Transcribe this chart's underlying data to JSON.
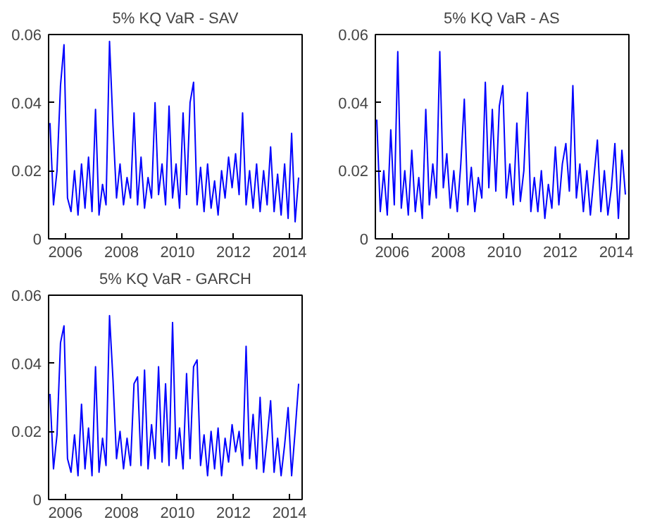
{
  "chart_data": [
    {
      "type": "line",
      "title": "5% KQ VaR - SAV",
      "xlim": [
        2005.4,
        2014.45
      ],
      "xticks": [
        2006,
        2008,
        2010,
        2012,
        2014
      ],
      "ylim": [
        0,
        0.06
      ],
      "yticks": [
        0,
        0.02,
        0.04,
        0.06
      ],
      "grid": false,
      "x": [
        2005.45,
        2005.575,
        2005.7,
        2005.825,
        2005.95,
        2006.075,
        2006.2,
        2006.325,
        2006.45,
        2006.575,
        2006.7,
        2006.825,
        2006.95,
        2007.075,
        2007.2,
        2007.325,
        2007.45,
        2007.575,
        2007.7,
        2007.825,
        2007.95,
        2008.075,
        2008.2,
        2008.325,
        2008.45,
        2008.575,
        2008.7,
        2008.825,
        2008.95,
        2009.075,
        2009.2,
        2009.325,
        2009.45,
        2009.575,
        2009.7,
        2009.825,
        2009.95,
        2010.075,
        2010.2,
        2010.325,
        2010.45,
        2010.575,
        2010.7,
        2010.825,
        2010.95,
        2011.075,
        2011.2,
        2011.325,
        2011.45,
        2011.575,
        2011.7,
        2011.825,
        2011.95,
        2012.075,
        2012.2,
        2012.325,
        2012.45,
        2012.575,
        2012.7,
        2012.825,
        2012.95,
        2013.075,
        2013.2,
        2013.325,
        2013.45,
        2013.575,
        2013.7,
        2013.825,
        2013.95,
        2014.075,
        2014.2,
        2014.325
      ],
      "series": [
        {
          "color": "#0000ff",
          "values": [
            0.034,
            0.01,
            0.02,
            0.045,
            0.057,
            0.012,
            0.008,
            0.02,
            0.007,
            0.022,
            0.009,
            0.024,
            0.008,
            0.038,
            0.007,
            0.016,
            0.01,
            0.058,
            0.033,
            0.012,
            0.022,
            0.01,
            0.018,
            0.012,
            0.037,
            0.01,
            0.024,
            0.009,
            0.018,
            0.012,
            0.04,
            0.013,
            0.022,
            0.01,
            0.039,
            0.012,
            0.022,
            0.009,
            0.037,
            0.013,
            0.04,
            0.046,
            0.01,
            0.021,
            0.008,
            0.022,
            0.009,
            0.017,
            0.007,
            0.02,
            0.012,
            0.024,
            0.015,
            0.025,
            0.013,
            0.037,
            0.01,
            0.02,
            0.009,
            0.022,
            0.008,
            0.02,
            0.01,
            0.027,
            0.008,
            0.019,
            0.007,
            0.022,
            0.006,
            0.031,
            0.005,
            0.018
          ]
        }
      ]
    },
    {
      "type": "line",
      "title": "5% KQ VaR - AS",
      "xlim": [
        2005.4,
        2014.45
      ],
      "xticks": [
        2006,
        2008,
        2010,
        2012,
        2014
      ],
      "ylim": [
        0,
        0.06
      ],
      "yticks": [
        0,
        0.02,
        0.04,
        0.06
      ],
      "grid": false,
      "x": [
        2005.45,
        2005.575,
        2005.7,
        2005.825,
        2005.95,
        2006.075,
        2006.2,
        2006.325,
        2006.45,
        2006.575,
        2006.7,
        2006.825,
        2006.95,
        2007.075,
        2007.2,
        2007.325,
        2007.45,
        2007.575,
        2007.7,
        2007.825,
        2007.95,
        2008.075,
        2008.2,
        2008.325,
        2008.45,
        2008.575,
        2008.7,
        2008.825,
        2008.95,
        2009.075,
        2009.2,
        2009.325,
        2009.45,
        2009.575,
        2009.7,
        2009.825,
        2009.95,
        2010.075,
        2010.2,
        2010.325,
        2010.45,
        2010.575,
        2010.7,
        2010.825,
        2010.95,
        2011.075,
        2011.2,
        2011.325,
        2011.45,
        2011.575,
        2011.7,
        2011.825,
        2011.95,
        2012.075,
        2012.2,
        2012.325,
        2012.45,
        2012.575,
        2012.7,
        2012.825,
        2012.95,
        2013.075,
        2013.2,
        2013.325,
        2013.45,
        2013.575,
        2013.7,
        2013.825,
        2013.95,
        2014.075,
        2014.2,
        2014.325
      ],
      "series": [
        {
          "color": "#0000ff",
          "values": [
            0.035,
            0.008,
            0.02,
            0.007,
            0.032,
            0.01,
            0.055,
            0.009,
            0.02,
            0.007,
            0.026,
            0.008,
            0.018,
            0.006,
            0.038,
            0.01,
            0.022,
            0.012,
            0.055,
            0.015,
            0.025,
            0.009,
            0.02,
            0.008,
            0.022,
            0.041,
            0.01,
            0.021,
            0.008,
            0.018,
            0.012,
            0.046,
            0.015,
            0.038,
            0.014,
            0.039,
            0.045,
            0.012,
            0.022,
            0.01,
            0.034,
            0.011,
            0.02,
            0.043,
            0.008,
            0.018,
            0.008,
            0.02,
            0.006,
            0.016,
            0.009,
            0.027,
            0.01,
            0.022,
            0.028,
            0.014,
            0.045,
            0.012,
            0.022,
            0.008,
            0.02,
            0.007,
            0.018,
            0.029,
            0.008,
            0.02,
            0.007,
            0.015,
            0.028,
            0.006,
            0.026,
            0.013
          ]
        }
      ]
    },
    {
      "type": "line",
      "title": "5% KQ VaR - GARCH",
      "xlim": [
        2005.4,
        2014.45
      ],
      "xticks": [
        2006,
        2008,
        2010,
        2012,
        2014
      ],
      "ylim": [
        0,
        0.06
      ],
      "yticks": [
        0,
        0.02,
        0.04,
        0.06
      ],
      "grid": false,
      "x": [
        2005.45,
        2005.575,
        2005.7,
        2005.825,
        2005.95,
        2006.075,
        2006.2,
        2006.325,
        2006.45,
        2006.575,
        2006.7,
        2006.825,
        2006.95,
        2007.075,
        2007.2,
        2007.325,
        2007.45,
        2007.575,
        2007.7,
        2007.825,
        2007.95,
        2008.075,
        2008.2,
        2008.325,
        2008.45,
        2008.575,
        2008.7,
        2008.825,
        2008.95,
        2009.075,
        2009.2,
        2009.325,
        2009.45,
        2009.575,
        2009.7,
        2009.825,
        2009.95,
        2010.075,
        2010.2,
        2010.325,
        2010.45,
        2010.575,
        2010.7,
        2010.825,
        2010.95,
        2011.075,
        2011.2,
        2011.325,
        2011.45,
        2011.575,
        2011.7,
        2011.825,
        2011.95,
        2012.075,
        2012.2,
        2012.325,
        2012.45,
        2012.575,
        2012.7,
        2012.825,
        2012.95,
        2013.075,
        2013.2,
        2013.325,
        2013.45,
        2013.575,
        2013.7,
        2013.825,
        2013.95,
        2014.075,
        2014.2,
        2014.325
      ],
      "series": [
        {
          "color": "#0000ff",
          "values": [
            0.031,
            0.009,
            0.019,
            0.046,
            0.051,
            0.012,
            0.008,
            0.019,
            0.007,
            0.028,
            0.009,
            0.021,
            0.007,
            0.039,
            0.008,
            0.018,
            0.01,
            0.054,
            0.035,
            0.012,
            0.02,
            0.009,
            0.018,
            0.01,
            0.034,
            0.036,
            0.01,
            0.038,
            0.009,
            0.022,
            0.012,
            0.039,
            0.011,
            0.034,
            0.01,
            0.052,
            0.012,
            0.021,
            0.009,
            0.037,
            0.012,
            0.039,
            0.041,
            0.01,
            0.019,
            0.007,
            0.02,
            0.009,
            0.021,
            0.007,
            0.018,
            0.011,
            0.022,
            0.014,
            0.02,
            0.01,
            0.045,
            0.012,
            0.025,
            0.009,
            0.03,
            0.008,
            0.018,
            0.029,
            0.008,
            0.018,
            0.007,
            0.016,
            0.027,
            0.007,
            0.02,
            0.034
          ]
        }
      ]
    }
  ]
}
